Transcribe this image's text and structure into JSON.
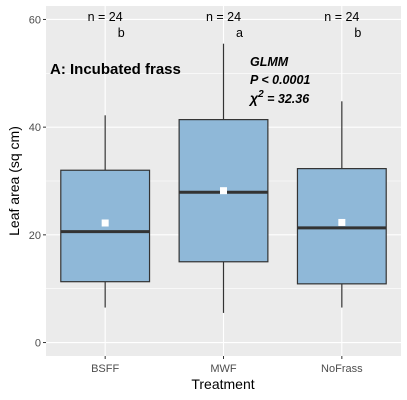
{
  "chart_data": {
    "type": "boxplot",
    "title": "",
    "panel_label": "A: Incubated frass",
    "xlabel": "Treatment",
    "ylabel": "Leaf area (sq cm)",
    "ylim": [
      -2.5,
      62.5
    ],
    "yticks": [
      0,
      20,
      40,
      60
    ],
    "grid": true,
    "categories": [
      "BSFF",
      "MWF",
      "NoFrass"
    ],
    "boxes": [
      {
        "category": "BSFF",
        "whisker_low": 6.5,
        "q1": 11.3,
        "median": 20.6,
        "q3": 32.0,
        "whisker_high": 42.2,
        "mean": 22.2,
        "n_label": "n = 24",
        "group_letter": "b"
      },
      {
        "category": "MWF",
        "whisker_low": 5.5,
        "q1": 15.0,
        "median": 27.9,
        "q3": 41.4,
        "whisker_high": 55.5,
        "mean": 28.2,
        "n_label": "n = 24",
        "group_letter": "a"
      },
      {
        "category": "NoFrass",
        "whisker_low": 6.5,
        "q1": 10.9,
        "median": 21.3,
        "q3": 32.3,
        "whisker_high": 44.8,
        "mean": 22.3,
        "n_label": "n = 24",
        "group_letter": "b"
      }
    ],
    "stats": {
      "line1": "GLMM",
      "line2": "P < 0.0001",
      "line3_prefix": "χ",
      "line3_sup": "2",
      "line3_suffix": " = 32.36"
    },
    "colors": {
      "panel_bg": "#ebebeb",
      "grid": "#ffffff",
      "box_fill": "#8fb8d8",
      "box_stroke": "#333333",
      "mean_marker": "#ffffff"
    }
  }
}
